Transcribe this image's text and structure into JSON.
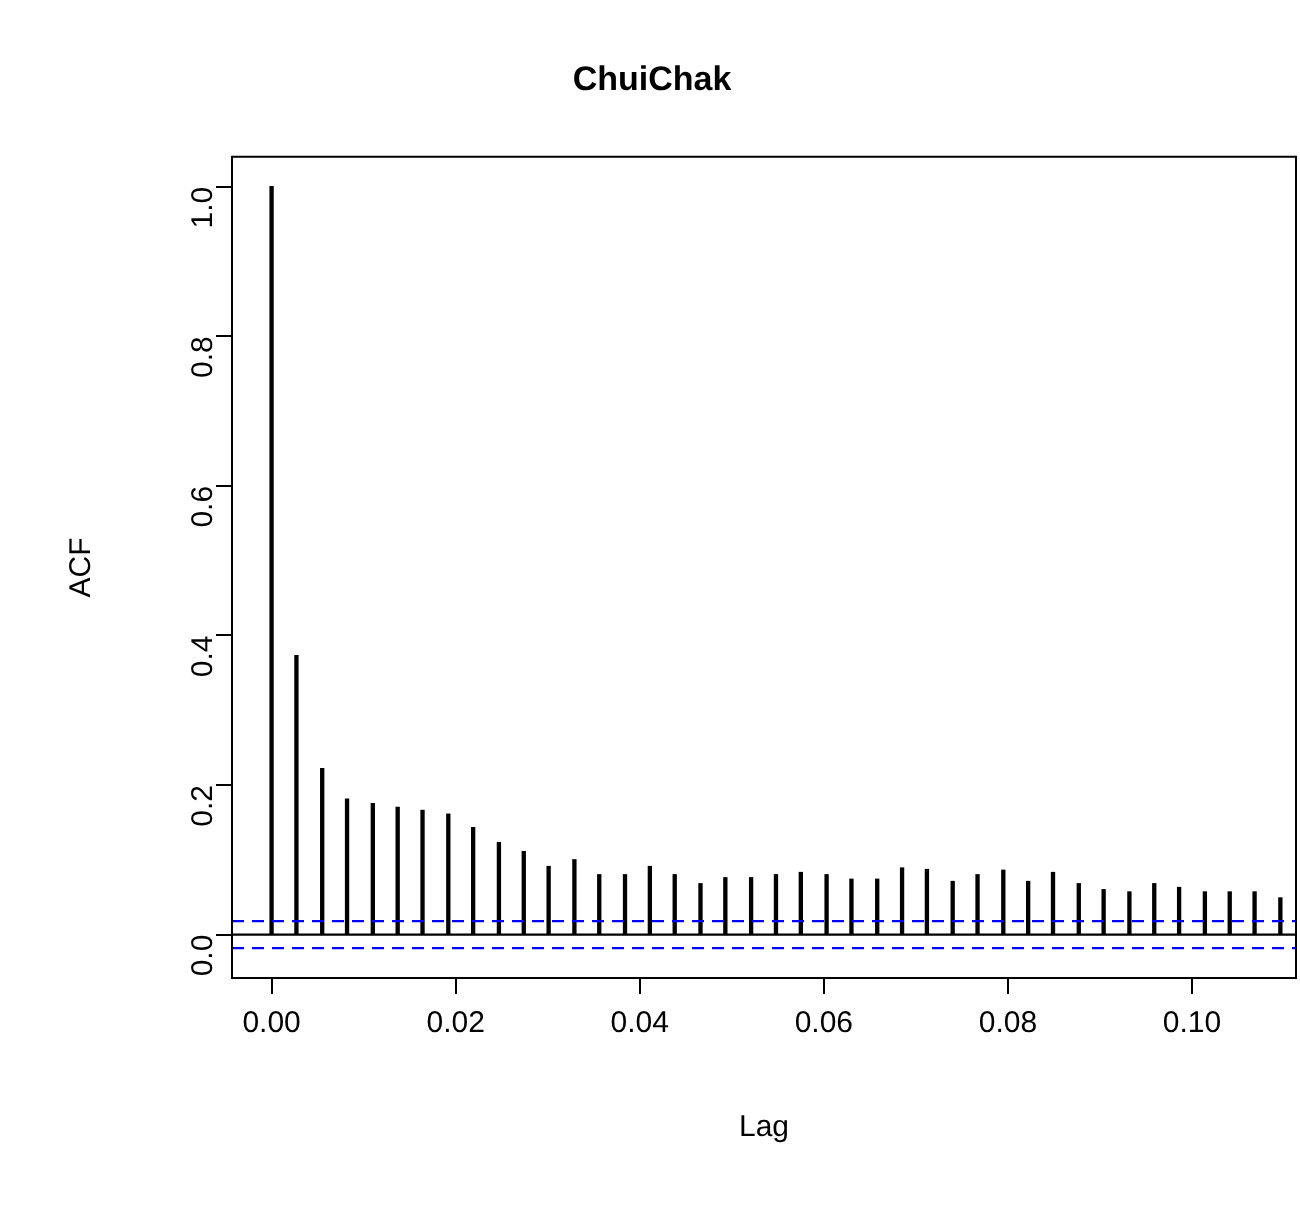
{
  "chart_data": {
    "type": "bar",
    "title": "ChuiChak",
    "xlabel": "Lag",
    "ylabel": "ACF",
    "color": "#000000",
    "x": [
      0,
      0.0027,
      0.0055,
      0.0082,
      0.011,
      0.0137,
      0.0164,
      0.0192,
      0.0219,
      0.0247,
      0.0274,
      0.0301,
      0.0329,
      0.0356,
      0.0384,
      0.0411,
      0.0438,
      0.0466,
      0.0493,
      0.0521,
      0.0548,
      0.0575,
      0.0603,
      0.063,
      0.0658,
      0.0685,
      0.0712,
      0.074,
      0.0767,
      0.0795,
      0.0822,
      0.0849,
      0.0877,
      0.0904,
      0.0932,
      0.0959,
      0.0986,
      0.1014,
      0.1041,
      0.1068,
      0.1096
    ],
    "values": [
      1.0,
      0.373,
      0.222,
      0.181,
      0.175,
      0.17,
      0.166,
      0.161,
      0.143,
      0.123,
      0.111,
      0.091,
      0.1,
      0.08,
      0.08,
      0.091,
      0.08,
      0.068,
      0.076,
      0.076,
      0.08,
      0.083,
      0.08,
      0.074,
      0.074,
      0.089,
      0.087,
      0.071,
      0.08,
      0.086,
      0.071,
      0.083,
      0.068,
      0.06,
      0.057,
      0.068,
      0.063,
      0.057,
      0.057,
      0.057,
      0.049
    ],
    "xlim": [
      -0.0043,
      0.1113
    ],
    "ylim": [
      -0.058,
      1.04
    ],
    "xticks": [
      {
        "value": 0,
        "label": "0.00"
      },
      {
        "value": 0.02,
        "label": "0.02"
      },
      {
        "value": 0.04,
        "label": "0.04"
      },
      {
        "value": 0.06,
        "label": "0.06"
      },
      {
        "value": 0.08,
        "label": "0.08"
      },
      {
        "value": 0.1,
        "label": "0.10"
      }
    ],
    "yticks": [
      {
        "value": 0,
        "label": "0.0"
      },
      {
        "value": 0.2,
        "label": "0.2"
      },
      {
        "value": 0.4,
        "label": "0.4"
      },
      {
        "value": 0.6,
        "label": "0.6"
      },
      {
        "value": 0.8,
        "label": "0.8"
      },
      {
        "value": 1,
        "label": "1.0"
      }
    ],
    "ref_lines": [
      {
        "axis": "y",
        "value": 0,
        "color": "#000000",
        "line_style": "solid"
      },
      {
        "axis": "y",
        "value": 0.018,
        "color": "#0000ff",
        "line_style": "dashed"
      },
      {
        "axis": "y",
        "value": -0.018,
        "color": "#0000ff",
        "line_style": "dashed"
      }
    ]
  }
}
